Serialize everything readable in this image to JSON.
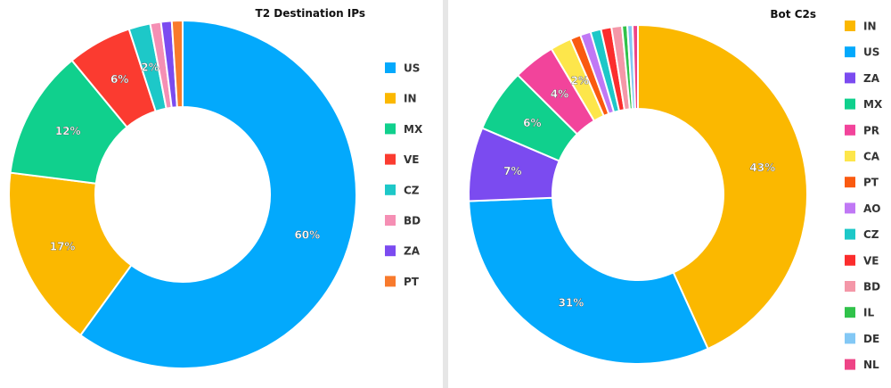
{
  "chart_data": [
    {
      "type": "pie",
      "title": "T2 Destination IPs",
      "categories": [
        "US",
        "IN",
        "MX",
        "VE",
        "CZ",
        "BD",
        "ZA",
        "PT"
      ],
      "values": [
        60,
        17,
        12,
        6,
        2,
        1,
        1,
        1
      ],
      "data_labels": [
        "60%",
        "17%",
        "12%",
        "6%",
        "2%",
        "",
        "",
        ""
      ],
      "colors": [
        "#03a9fc",
        "#fbb800",
        "#10d08d",
        "#fb3b30",
        "#1dc8c8",
        "#f58fb4",
        "#7b4bf0",
        "#f87a2c"
      ],
      "donut": true,
      "legend_position": "right"
    },
    {
      "type": "pie",
      "title": "Bot C2s",
      "categories": [
        "IN",
        "US",
        "ZA",
        "MX",
        "PR",
        "CA",
        "PT",
        "AO",
        "CZ",
        "VE",
        "BD",
        "IL",
        "DE",
        "NL"
      ],
      "values": [
        43,
        31,
        7,
        6,
        4,
        2,
        1,
        1,
        1,
        1,
        1,
        0.5,
        0.5,
        0.5
      ],
      "data_labels": [
        "43%",
        "31%",
        "7%",
        "6%",
        "4%",
        "2%",
        "",
        "",
        "",
        "",
        "",
        "",
        "",
        ""
      ],
      "colors": [
        "#fbb800",
        "#03a9fc",
        "#7b4bf0",
        "#10d08d",
        "#f2449b",
        "#fde64b",
        "#fa5a10",
        "#c078f5",
        "#1dc8c8",
        "#fb2d2d",
        "#f497a8",
        "#30c24a",
        "#83c8f5",
        "#ee4486"
      ],
      "donut": true,
      "legend_position": "right"
    }
  ]
}
